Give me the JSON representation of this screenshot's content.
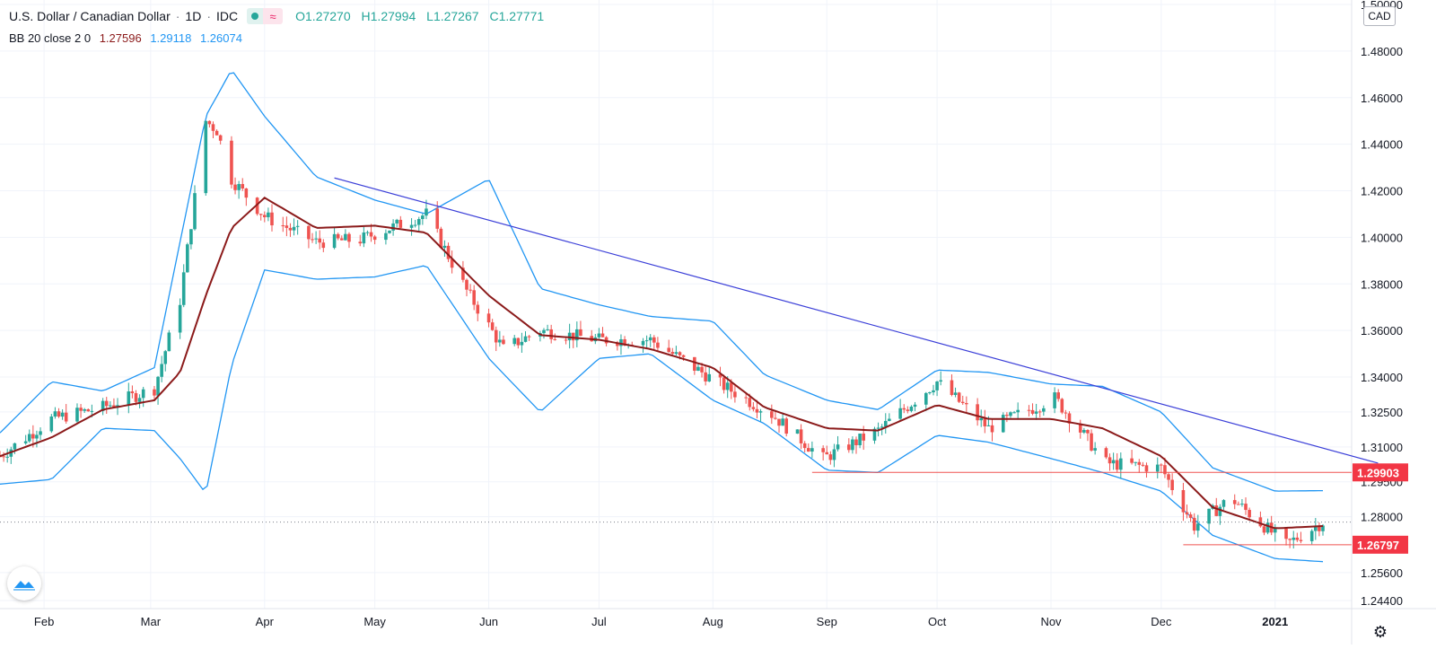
{
  "header": {
    "symbol_title": "U.S. Dollar / Canadian Dollar",
    "interval": "1D",
    "exchange": "IDC",
    "separator": "·",
    "wave_icon": "≈",
    "ohlc": [
      {
        "key": "O",
        "value": "1.27270"
      },
      {
        "key": "H",
        "value": "1.27994"
      },
      {
        "key": "L",
        "value": "1.27267"
      },
      {
        "key": "C",
        "value": "1.27771"
      }
    ]
  },
  "indicator": {
    "name": "BB 20 close 2 0",
    "basis": "1.27596",
    "upper": "1.29118",
    "lower": "1.26074"
  },
  "currency_label": "CAD",
  "colors": {
    "up": "#26a69a",
    "down": "#ef5350",
    "basis": "#8b1a1a",
    "band": "#2196f3",
    "trendline": "#3b3fd8",
    "support": "#ef5350",
    "price_tag_bg": "#f23645"
  },
  "chart_data": {
    "type": "candlestick",
    "title": "U.S. Dollar / Canadian Dollar · 1D · IDC",
    "y_axis": {
      "ticks": [
        "1.50000",
        "1.48000",
        "1.46000",
        "1.44000",
        "1.42000",
        "1.40000",
        "1.38000",
        "1.36000",
        "1.34000",
        "1.32500",
        "1.31000",
        "1.29500",
        "1.28000",
        "1.25600",
        "1.24400"
      ],
      "tick_values": [
        1.5,
        1.48,
        1.46,
        1.44,
        1.42,
        1.4,
        1.38,
        1.36,
        1.34,
        1.325,
        1.31,
        1.295,
        1.28,
        1.256,
        1.244
      ],
      "label_prefix": "1."
    },
    "x_axis": {
      "labels": [
        "Feb",
        "Mar",
        "Apr",
        "May",
        "Jun",
        "Jul",
        "Aug",
        "Sep",
        "Oct",
        "Nov",
        "Dec",
        "2021"
      ],
      "start_date": "2020-01-20",
      "end_date": "2021-01-14",
      "label_dates": [
        "2020-02-01",
        "2020-03-01",
        "2020-04-01",
        "2020-05-01",
        "2020-06-01",
        "2020-07-01",
        "2020-08-01",
        "2020-09-01",
        "2020-10-01",
        "2020-11-01",
        "2020-12-01",
        "2021-01-01"
      ]
    },
    "price_tags": [
      {
        "value": 1.29903,
        "label": "1.29903"
      },
      {
        "value": 1.26797,
        "label": "1.26797"
      }
    ],
    "last_close": 1.27771,
    "trendline": {
      "from": {
        "date": "2020-04-20",
        "value": 1.4255
      },
      "to": {
        "date": "2021-01-29",
        "value": 1.303
      }
    },
    "support_lines": [
      {
        "from_date": "2020-08-28",
        "value": 1.29903
      },
      {
        "from_date": "2020-12-07",
        "value": 1.26797
      }
    ],
    "series": [
      {
        "name": "USDCAD close",
        "x": [
          "2020-01-20",
          "2020-02-03",
          "2020-02-17",
          "2020-03-02",
          "2020-03-09",
          "2020-03-16",
          "2020-03-19",
          "2020-03-23",
          "2020-04-01",
          "2020-04-15",
          "2020-04-27",
          "2020-05-15",
          "2020-05-26",
          "2020-06-05",
          "2020-06-15",
          "2020-07-01",
          "2020-07-15",
          "2020-08-03",
          "2020-08-17",
          "2020-08-31",
          "2020-09-15",
          "2020-10-01",
          "2020-10-15",
          "2020-11-02",
          "2020-11-16",
          "2020-12-01",
          "2020-12-10",
          "2020-12-20",
          "2021-01-04",
          "2021-01-14"
        ],
        "values": [
          1.306,
          1.322,
          1.327,
          1.335,
          1.373,
          1.45,
          1.446,
          1.425,
          1.409,
          1.398,
          1.399,
          1.41,
          1.377,
          1.352,
          1.36,
          1.356,
          1.356,
          1.337,
          1.324,
          1.305,
          1.317,
          1.338,
          1.318,
          1.331,
          1.303,
          1.301,
          1.276,
          1.288,
          1.268,
          1.2777
        ]
      },
      {
        "name": "BB basis",
        "x": [
          "2020-01-20",
          "2020-02-03",
          "2020-02-17",
          "2020-03-02",
          "2020-03-09",
          "2020-03-16",
          "2020-03-23",
          "2020-04-01",
          "2020-04-15",
          "2020-05-01",
          "2020-05-15",
          "2020-06-01",
          "2020-06-15",
          "2020-07-01",
          "2020-07-15",
          "2020-08-01",
          "2020-08-15",
          "2020-09-01",
          "2020-09-15",
          "2020-10-01",
          "2020-10-15",
          "2020-11-01",
          "2020-11-15",
          "2020-12-01",
          "2020-12-15",
          "2021-01-01",
          "2021-01-14"
        ],
        "values": [
          1.306,
          1.314,
          1.326,
          1.33,
          1.342,
          1.375,
          1.404,
          1.417,
          1.404,
          1.405,
          1.402,
          1.375,
          1.358,
          1.356,
          1.352,
          1.344,
          1.327,
          1.318,
          1.317,
          1.328,
          1.322,
          1.322,
          1.318,
          1.306,
          1.284,
          1.275,
          1.276
        ]
      },
      {
        "name": "BB upper",
        "x": [
          "2020-01-20",
          "2020-02-03",
          "2020-02-17",
          "2020-03-02",
          "2020-03-16",
          "2020-03-23",
          "2020-04-01",
          "2020-04-15",
          "2020-05-01",
          "2020-05-15",
          "2020-06-01",
          "2020-06-15",
          "2020-07-01",
          "2020-07-15",
          "2020-08-01",
          "2020-08-15",
          "2020-09-01",
          "2020-09-15",
          "2020-10-01",
          "2020-10-15",
          "2020-11-01",
          "2020-11-15",
          "2020-12-01",
          "2020-12-15",
          "2021-01-01",
          "2021-01-14"
        ],
        "values": [
          1.316,
          1.338,
          1.334,
          1.344,
          1.452,
          1.472,
          1.452,
          1.426,
          1.416,
          1.41,
          1.425,
          1.378,
          1.371,
          1.366,
          1.364,
          1.341,
          1.33,
          1.326,
          1.343,
          1.342,
          1.337,
          1.336,
          1.325,
          1.301,
          1.291,
          1.2912
        ]
      },
      {
        "name": "BB lower",
        "x": [
          "2020-01-20",
          "2020-02-03",
          "2020-02-17",
          "2020-03-02",
          "2020-03-09",
          "2020-03-16",
          "2020-03-23",
          "2020-04-01",
          "2020-04-15",
          "2020-05-01",
          "2020-05-15",
          "2020-06-01",
          "2020-06-15",
          "2020-07-01",
          "2020-07-15",
          "2020-08-01",
          "2020-08-15",
          "2020-09-01",
          "2020-09-15",
          "2020-10-01",
          "2020-10-15",
          "2020-11-01",
          "2020-11-15",
          "2020-12-01",
          "2020-12-15",
          "2021-01-01",
          "2021-01-14"
        ],
        "values": [
          1.294,
          1.296,
          1.318,
          1.317,
          1.305,
          1.29,
          1.345,
          1.386,
          1.382,
          1.383,
          1.388,
          1.348,
          1.325,
          1.348,
          1.35,
          1.33,
          1.32,
          1.3,
          1.299,
          1.315,
          1.312,
          1.305,
          1.299,
          1.291,
          1.272,
          1.262,
          1.2607
        ]
      }
    ]
  }
}
